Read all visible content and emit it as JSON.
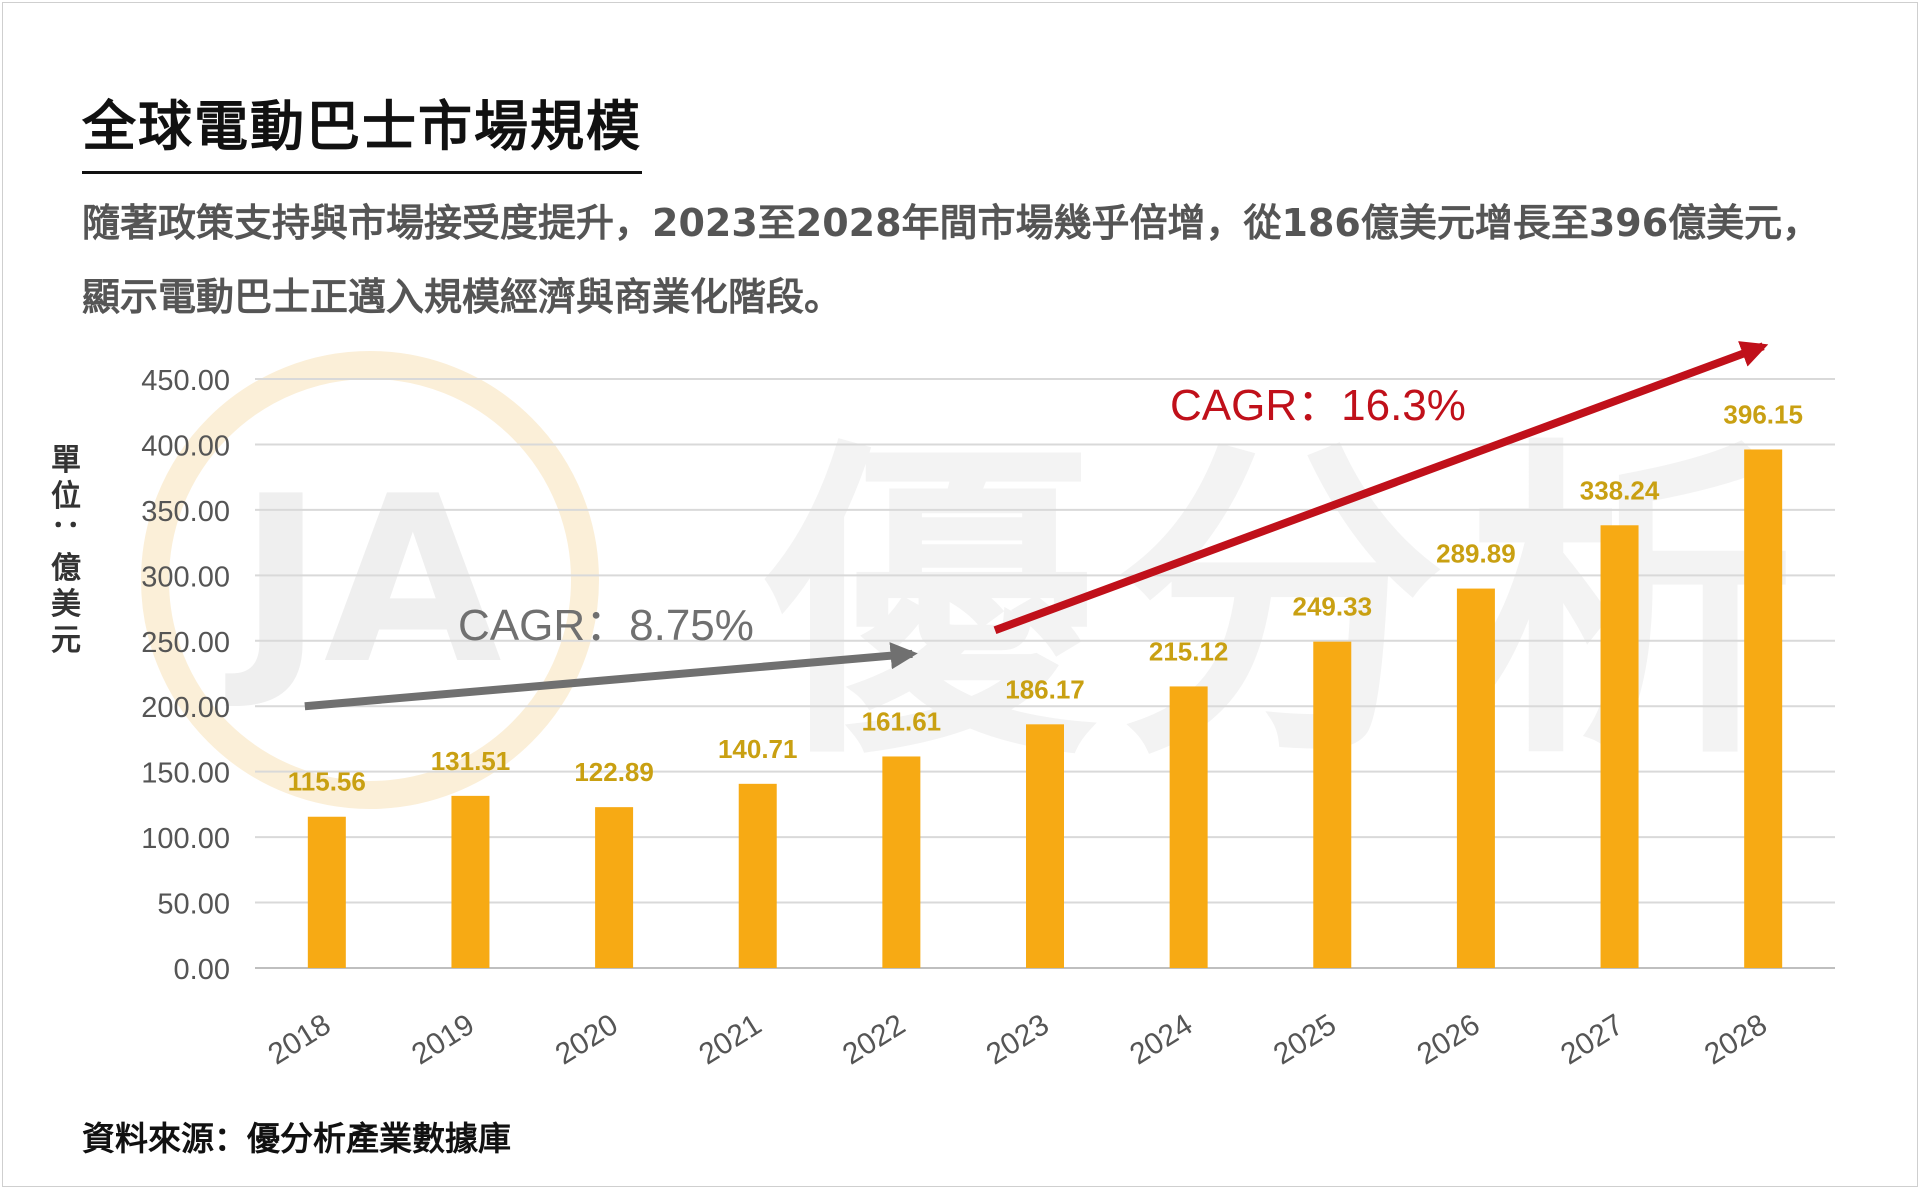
{
  "header": {
    "title": "全球電動巴士市場規模",
    "subtitle": "隨著政策支持與市場接受度提升，2023至2028年間市場幾乎倍增，從186億美元增長至396億美元，顯示電動巴士正邁入規模經濟與商業化階段。"
  },
  "footer": {
    "source": "資料來源：優分析產業數據庫"
  },
  "watermark": {
    "logo_text": "JA",
    "text": "優分析"
  },
  "colors": {
    "bar": "#F7AA14",
    "data_label": "#C9A012",
    "arrow_low": "#707070",
    "arrow_high": "#C0101A",
    "grid": "#D9D9D9",
    "axis_text": "#555555"
  },
  "chart_data": {
    "type": "bar",
    "categories": [
      "2018",
      "2019",
      "2020",
      "2021",
      "2022",
      "2023",
      "2024",
      "2025",
      "2026",
      "2027",
      "2028"
    ],
    "values": [
      115.56,
      131.51,
      122.89,
      140.71,
      161.61,
      186.17,
      215.12,
      249.33,
      289.89,
      338.24,
      396.15
    ],
    "value_labels": [
      "115.56",
      "131.51",
      "122.89",
      "140.71",
      "161.61",
      "186.17",
      "215.12",
      "249.33",
      "289.89",
      "338.24",
      "396.15"
    ],
    "yticks": [
      "0.00",
      "50.00",
      "100.00",
      "150.00",
      "200.00",
      "250.00",
      "300.00",
      "350.00",
      "400.00",
      "450.00"
    ],
    "ylim": [
      0,
      450
    ],
    "ylabel": "單位：億美元",
    "xlabel": "",
    "grid": true,
    "legend": "none",
    "annotations": [
      {
        "text": "CAGR：8.75%",
        "from": "2018",
        "to": "2022",
        "color": "#707070"
      },
      {
        "text": "CAGR：16.3%",
        "from": "2023",
        "to": "2028",
        "color": "#C0101A"
      }
    ]
  }
}
